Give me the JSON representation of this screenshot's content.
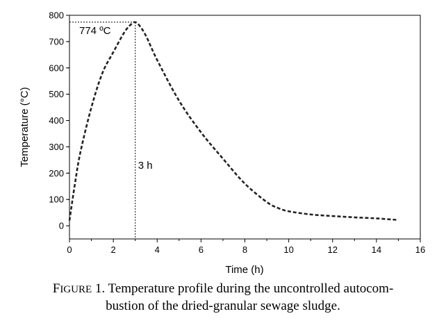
{
  "chart_data": {
    "type": "line",
    "xlabel": "Time (h)",
    "ylabel": "Temperature (°C)",
    "xlim": [
      0,
      16
    ],
    "ylim": [
      -50,
      800
    ],
    "xticks": [
      0,
      2,
      4,
      6,
      8,
      10,
      12,
      14,
      16
    ],
    "xtick_labels": [
      "0",
      "2",
      "4",
      "6",
      "8",
      "10",
      "12",
      "14",
      "16"
    ],
    "yticks": [
      0,
      100,
      200,
      300,
      400,
      500,
      600,
      700,
      800
    ],
    "ytick_labels": [
      "0",
      "100",
      "200",
      "300",
      "400",
      "500",
      "600",
      "700",
      "800"
    ],
    "grid": false,
    "line_style": "dashed",
    "series": [
      {
        "x": [
          0,
          0.25,
          0.5,
          1.0,
          1.5,
          2.0,
          2.5,
          2.8,
          3.0,
          3.2,
          3.5,
          4.0,
          5.0,
          6.0,
          7.0,
          8.0,
          9.0,
          9.5,
          10.0,
          11.0,
          12.0,
          13.0,
          14.0,
          15.0
        ],
        "y": [
          20,
          160,
          280,
          450,
          580,
          660,
          735,
          765,
          774,
          760,
          720,
          630,
          475,
          355,
          255,
          160,
          90,
          68,
          55,
          43,
          37,
          32,
          28,
          22
        ]
      }
    ],
    "annotations": [
      {
        "text": "774 ºC",
        "x": 3.0,
        "y": 774
      },
      {
        "text": "3 h",
        "x": 3.0,
        "y": 774
      }
    ]
  },
  "caption": {
    "label_first": "F",
    "label_rest": "IGURE",
    "number": " 1.",
    "line1": " Temperature profile during the uncontrolled autocom-",
    "line2": "bustion of the dried-granular sewage sludge."
  }
}
